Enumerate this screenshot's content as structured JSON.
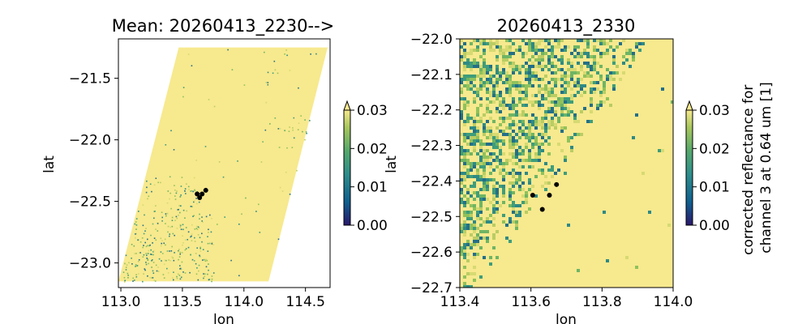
{
  "chart_data": [
    {
      "type": "heatmap",
      "title": "Mean: 20260413_2230-->",
      "xlabel": "lon",
      "ylabel": "lat",
      "xlim": [
        112.98,
        114.7
      ],
      "ylim": [
        -23.2,
        -21.18
      ],
      "xticks": [
        "113.0",
        "113.5",
        "114.0",
        "114.5"
      ],
      "yticks": [
        "-21.5",
        "-22.0",
        "-22.5",
        "-23.0"
      ],
      "swath_lon_lat": [
        [
          113.47,
          -21.25
        ],
        [
          114.68,
          -21.25
        ],
        [
          114.2,
          -23.15
        ],
        [
          112.98,
          -23.15
        ]
      ],
      "colorbar": {
        "ticks": [
          "0.00",
          "0.01",
          "0.02",
          "0.03"
        ],
        "range": [
          0.0,
          0.03
        ],
        "extend": "max",
        "colormap": "haline",
        "label": ""
      },
      "points": [
        {
          "lon": 113.62,
          "lat": -22.44
        },
        {
          "lon": 113.66,
          "lat": -22.44
        },
        {
          "lon": 113.69,
          "lat": -22.41
        },
        {
          "lon": 113.64,
          "lat": -22.47
        }
      ]
    },
    {
      "type": "heatmap",
      "title": "20260413_2330",
      "xlabel": "lon",
      "ylabel": "lat",
      "xlim": [
        113.4,
        114.0
      ],
      "ylim": [
        -22.7,
        -22.0
      ],
      "xticks": [
        "113.4",
        "113.6",
        "113.8",
        "114.0"
      ],
      "yticks": [
        "-22.0",
        "-22.1",
        "-22.2",
        "-22.3",
        "-22.4",
        "-22.5",
        "-22.6",
        "-22.7"
      ],
      "colorbar": {
        "ticks": [
          "0.00",
          "0.01",
          "0.02",
          "0.03"
        ],
        "range": [
          0.0,
          0.03
        ],
        "extend": "max",
        "colormap": "haline",
        "label": "corrected reflectance for channel 3 at 0.64 um [1]"
      },
      "points": [
        {
          "lon": 113.605,
          "lat": -22.44
        },
        {
          "lon": 113.652,
          "lat": -22.44
        },
        {
          "lon": 113.672,
          "lat": -22.41
        },
        {
          "lon": 113.632,
          "lat": -22.48
        }
      ]
    }
  ],
  "colors": {
    "background_field": "#f7e98e",
    "colormap_stops": [
      "#2a186c",
      "#0f5f8f",
      "#2f8f8b",
      "#57a96b",
      "#a8c75d",
      "#f7e98e"
    ],
    "point_color": "#000000"
  }
}
